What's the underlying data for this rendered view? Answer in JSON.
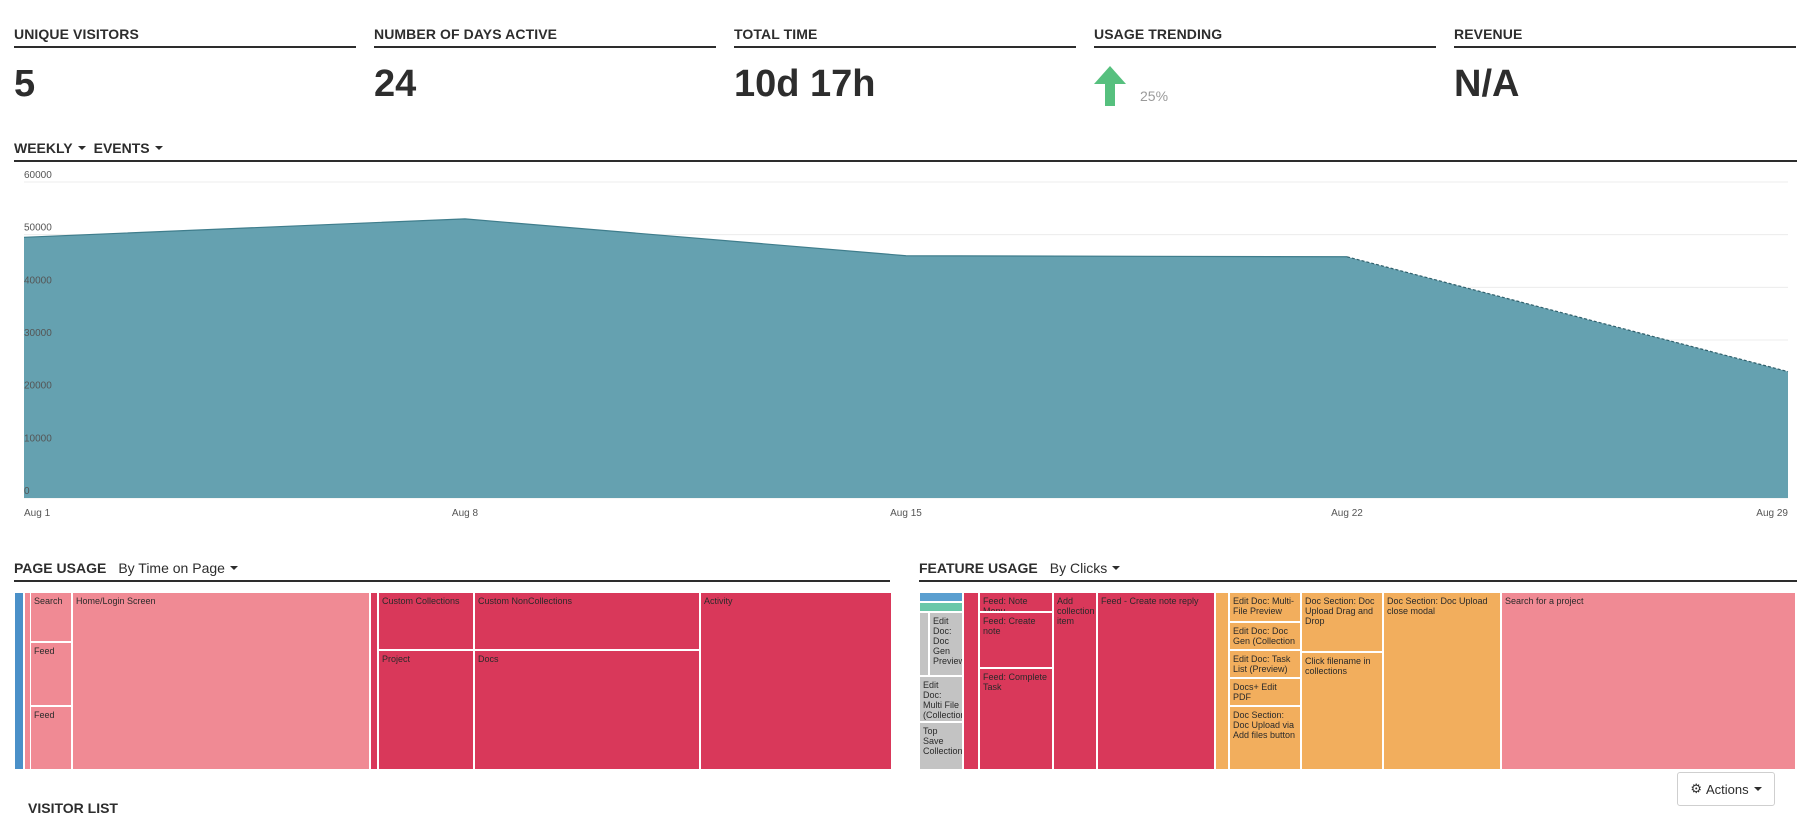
{
  "kpis": [
    {
      "label": "UNIQUE VISITORS",
      "value": "5"
    },
    {
      "label": "NUMBER OF DAYS ACTIVE",
      "value": "24"
    },
    {
      "label": "TOTAL TIME",
      "value": "10d 17h"
    },
    {
      "label": "USAGE TRENDING",
      "value": "25%",
      "direction": "up",
      "color": "#56c07e"
    },
    {
      "label": "REVENUE",
      "value": "N/A"
    }
  ],
  "events_section": {
    "period": "WEEKLY",
    "metric": "EVENTS"
  },
  "chart_data": {
    "type": "area",
    "x": [
      "Aug 1",
      "Aug 8",
      "Aug 15",
      "Aug 22",
      "Aug 29"
    ],
    "series": [
      {
        "values": [
          49500,
          53000,
          46000,
          45800,
          24000
        ]
      }
    ],
    "yticks": [
      0,
      10000,
      20000,
      30000,
      40000,
      50000,
      60000
    ],
    "ylim": [
      0,
      60000
    ],
    "grid": true,
    "projected_last_segment": true,
    "color": "#65a1b0"
  },
  "page_usage": {
    "title": "PAGE USAGE",
    "sort": "By Time on Page",
    "cells": [
      "Search",
      "Home/Login Screen",
      "Feed",
      "Feed",
      "Custom Collections",
      "Custom NonCollections",
      "Activity",
      "Project",
      "Docs"
    ]
  },
  "feature_usage": {
    "title": "FEATURE USAGE",
    "sort": "By Clicks",
    "cells": [
      "Edit Doc: Doc Gen Preview",
      "Edit Doc: Multi File (Collection - Preview)",
      "Top Save Collections",
      "Feed: Note Menu",
      "Feed: Create note",
      "Feed: Complete Task",
      "Add collection item",
      "Feed - Create note reply",
      "Edit Doc: Multi-File Preview",
      "Edit Doc: Doc Gen (Collection -",
      "Edit Doc: Task List (Preview)",
      "Docs+ Edit PDF",
      "Doc Section: Doc Upload via Add files button",
      "Doc Section: Doc Upload Drag and Drop",
      "Click filename in collections",
      "Doc Section: Doc Upload close modal",
      "Search for a project"
    ]
  },
  "actions_label": "Actions",
  "visitor_list_title": "VISITOR LIST"
}
